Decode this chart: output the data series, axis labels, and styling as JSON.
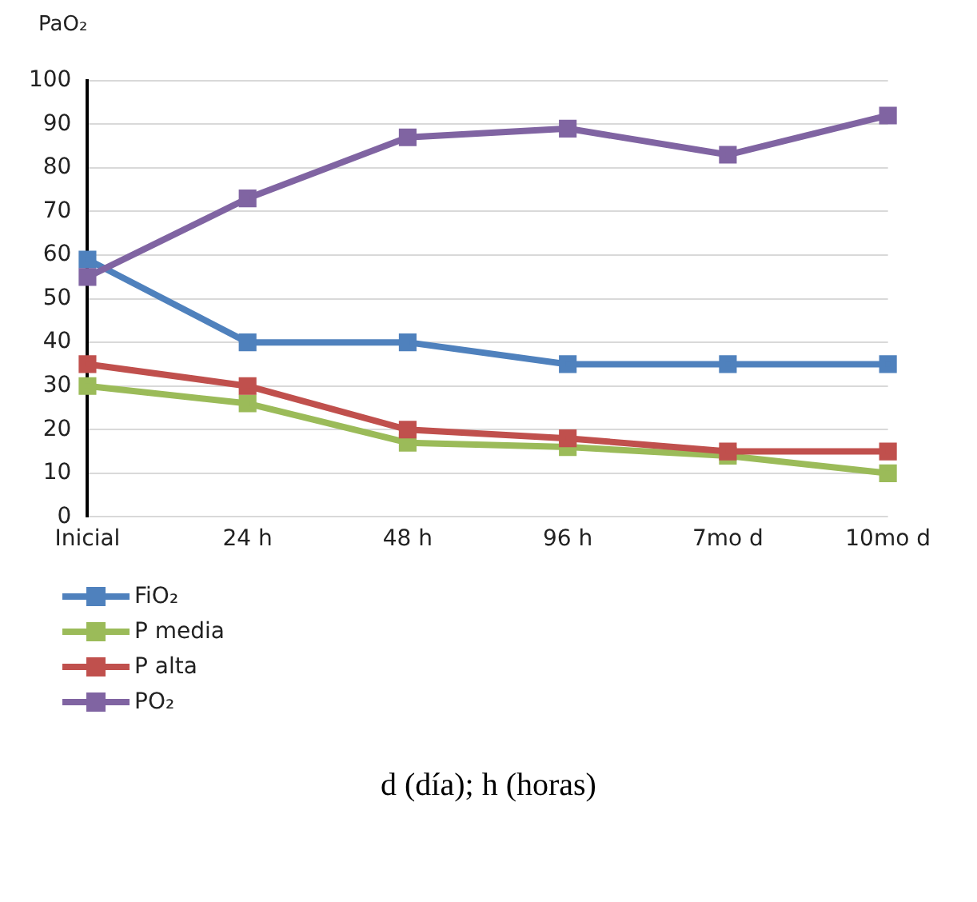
{
  "chart_data": {
    "type": "line",
    "ylabel": "PaO₂",
    "categories": [
      "Inicial",
      "24 h",
      "48 h",
      "96 h",
      "7mo d",
      "10mo d"
    ],
    "series": [
      {
        "name": "FiO₂",
        "color": "#4f81bd",
        "values": [
          59,
          40,
          40,
          35,
          35,
          35
        ]
      },
      {
        "name": "P media",
        "color": "#9bbb59",
        "values": [
          30,
          26,
          17,
          16,
          14,
          10
        ]
      },
      {
        "name": "P alta",
        "color": "#c0504d",
        "values": [
          35,
          30,
          20,
          18,
          15,
          15
        ]
      },
      {
        "name": "PO₂",
        "color": "#8064a2",
        "values": [
          55,
          73,
          87,
          89,
          83,
          92
        ]
      }
    ],
    "ylim": [
      0,
      100
    ],
    "yticks": [
      0,
      10,
      20,
      30,
      40,
      50,
      60,
      70,
      80,
      90,
      100
    ],
    "grid": "y",
    "legend": "bottom left",
    "marker": "square",
    "line_style": "solid",
    "annotations": [
      "d (día); h (horas)"
    ]
  }
}
